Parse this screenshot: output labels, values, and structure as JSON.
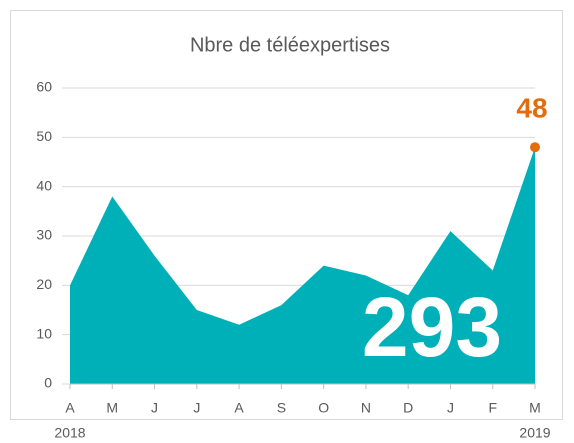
{
  "chart_data": {
    "type": "area",
    "title": "Nbre de téléexpertises",
    "categories": [
      "A",
      "M",
      "J",
      "J",
      "A",
      "S",
      "O",
      "N",
      "D",
      "J",
      "F",
      "M"
    ],
    "year_labels": [
      "2018",
      "2019"
    ],
    "values": [
      20,
      38,
      26,
      15,
      12,
      16,
      24,
      22,
      18,
      31,
      23,
      48
    ],
    "color": "#00b0b9",
    "highlight_color": "#e46c0a",
    "annotation": "293",
    "ylim": [
      0,
      60
    ],
    "yticks": [
      0,
      10,
      20,
      30,
      40,
      50,
      60
    ],
    "grid": true
  }
}
